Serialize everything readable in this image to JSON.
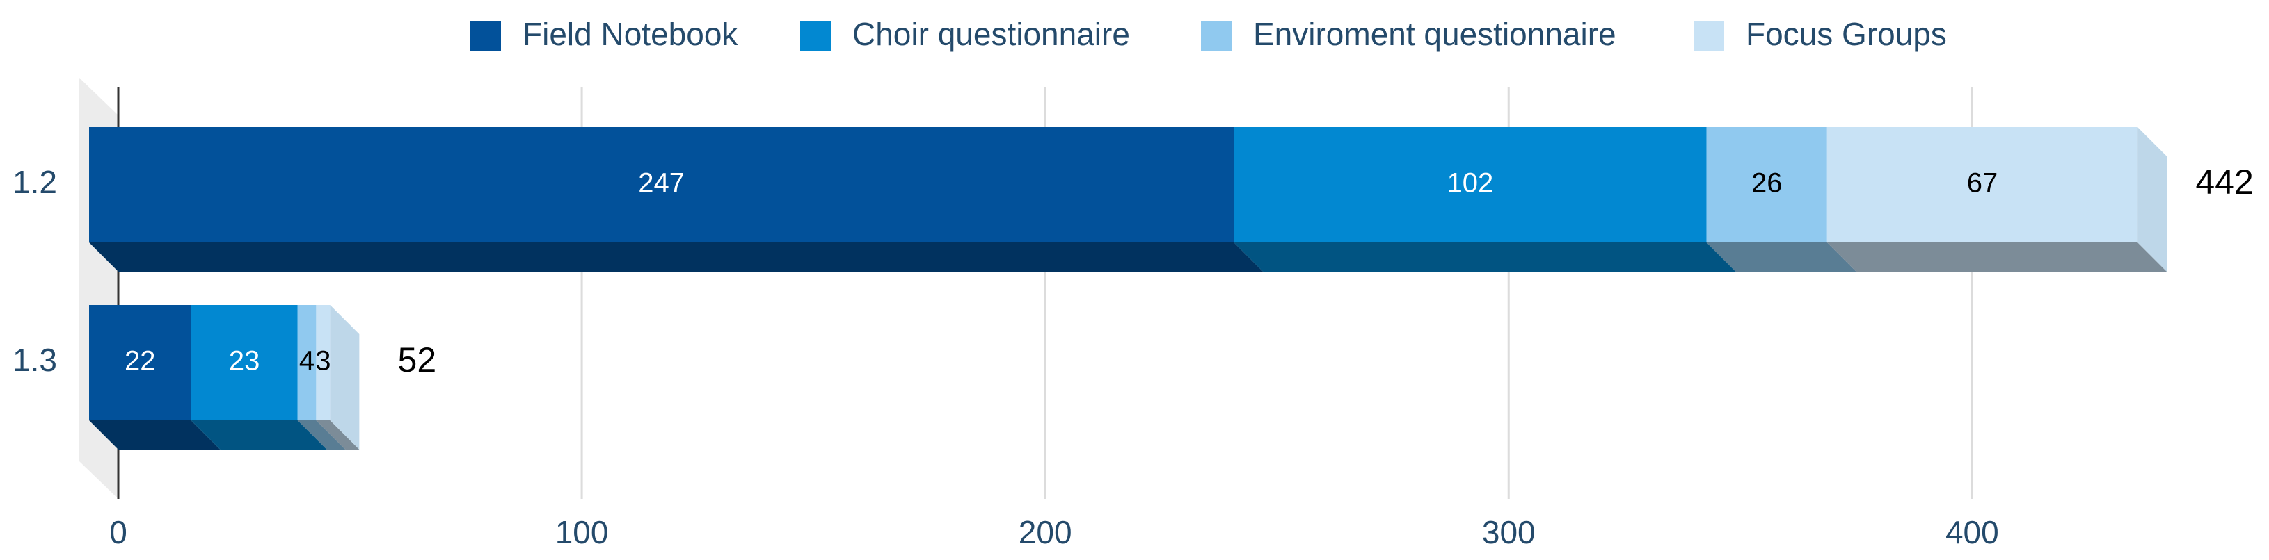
{
  "chart_data": {
    "type": "stacked-bar-3d",
    "categories": [
      "1.2",
      "1.3"
    ],
    "series": [
      {
        "name": "Field Notebook",
        "color": "#02519a",
        "values": [
          247,
          22
        ]
      },
      {
        "name": "Choir questionnaire",
        "color": "#0288d1",
        "values": [
          102,
          23
        ]
      },
      {
        "name": "Enviroment questionnaire",
        "color": "#90c9ef",
        "values": [
          26,
          4
        ]
      },
      {
        "name": "Focus Groups",
        "color": "#c8e2f5",
        "values": [
          67,
          3
        ]
      }
    ],
    "totals": [
      442,
      52
    ],
    "xlim": [
      0,
      460
    ],
    "xticks": [
      0,
      100,
      200,
      300,
      400
    ],
    "grid": true,
    "legend": "top"
  }
}
